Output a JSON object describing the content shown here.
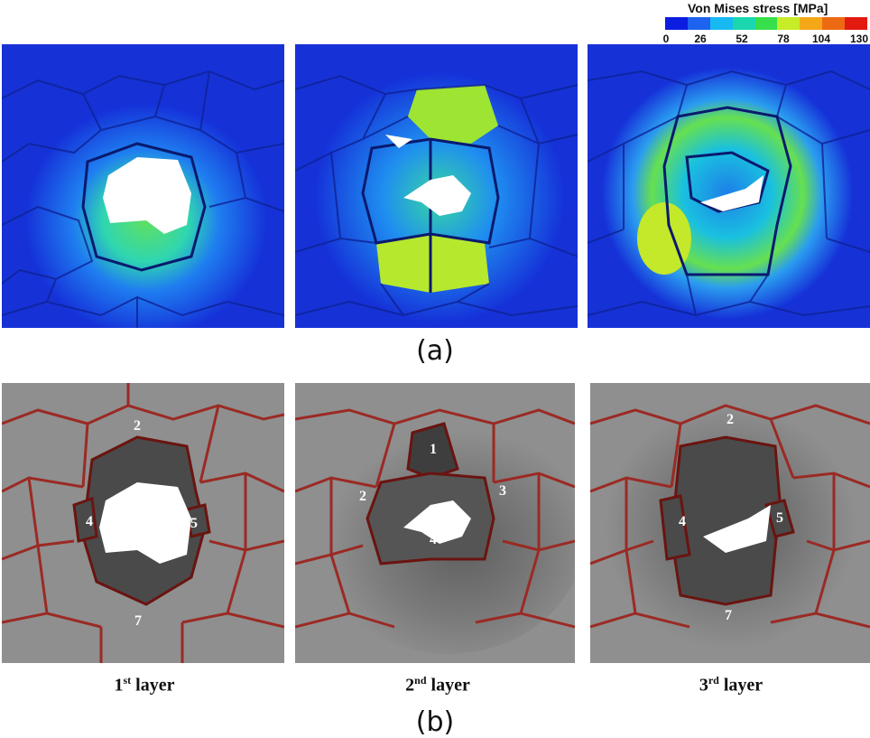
{
  "legend": {
    "title": "Von Mises stress [MPa]",
    "ticks": [
      "0",
      "26",
      "52",
      "78",
      "104",
      "130"
    ],
    "colors": [
      "#0a1de0",
      "#1e63f0",
      "#17b9f2",
      "#1ad7b0",
      "#37e04a",
      "#c8ec28",
      "#f4a818",
      "#ee6a12",
      "#e21a10"
    ]
  },
  "captions": {
    "a": "(a)",
    "b": "(b)"
  },
  "layers": [
    {
      "num": "1",
      "sup": "st",
      "rest": " layer"
    },
    {
      "num": "2",
      "sup": "nd",
      "rest": " layer"
    },
    {
      "num": "3",
      "sup": "rd",
      "rest": " layer"
    }
  ],
  "cell_labels": {
    "layer1": [
      "2",
      "4",
      "5",
      "7"
    ],
    "layer2": [
      "1",
      "2",
      "3",
      "4"
    ],
    "layer3": [
      "2",
      "4",
      "5",
      "7"
    ]
  }
}
